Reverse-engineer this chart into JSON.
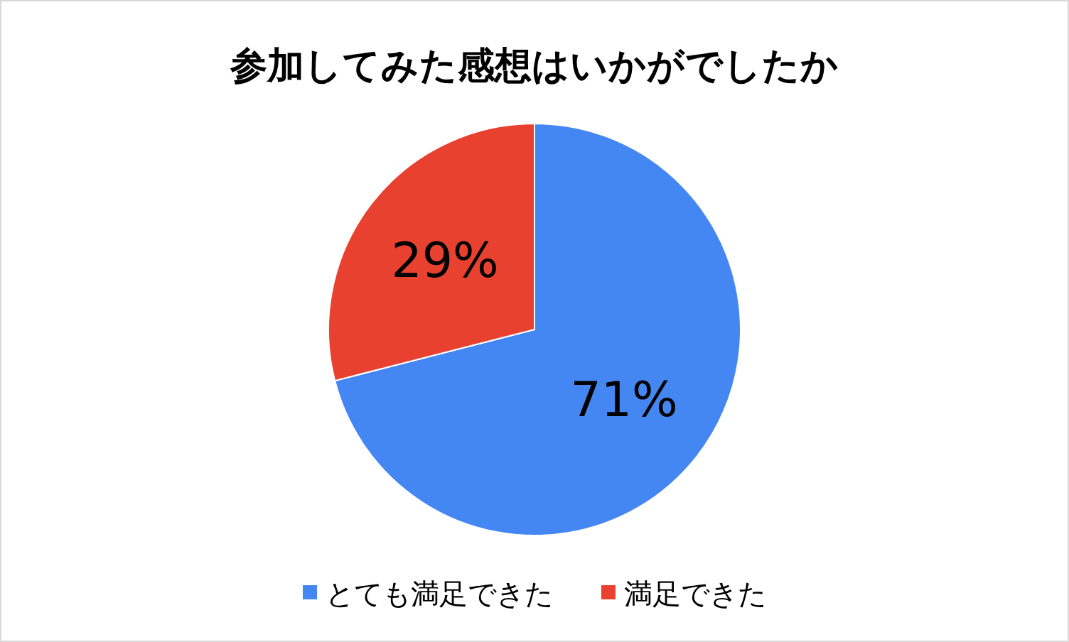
{
  "chart_data": {
    "type": "pie",
    "title": "参加してみた感想はいかがでしたか",
    "categories": [
      "とても満足できた",
      "満足できた"
    ],
    "values": [
      71,
      29
    ],
    "colors": [
      "#4487f2",
      "#e8412f"
    ],
    "value_labels": [
      "71%",
      "29%"
    ],
    "legend": "bottom"
  }
}
